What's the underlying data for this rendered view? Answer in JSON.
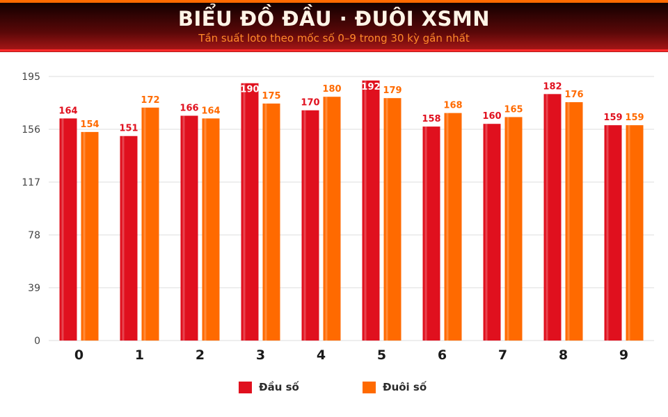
{
  "header": {
    "title": "BIỂU ĐỒ ĐẦU · ĐUÔI XSMN",
    "subtitle": "Tần suất loto theo mốc số 0–9 trong 30 kỳ gần nhất"
  },
  "colors": {
    "dau": "#e0101e",
    "duoi": "#ff6a00",
    "grid": "#dcdcdc",
    "axis_text": "#444444"
  },
  "chart_data": {
    "type": "bar",
    "title": "BIỂU ĐỒ ĐẦU · ĐUÔI XSMN",
    "subtitle": "Tần suất loto theo mốc số 0–9 trong 30 kỳ gần nhất",
    "categories": [
      "0",
      "1",
      "2",
      "3",
      "4",
      "5",
      "6",
      "7",
      "8",
      "9"
    ],
    "series": [
      {
        "name": "Đầu số",
        "values": [
          164,
          151,
          166,
          190,
          170,
          192,
          158,
          160,
          182,
          159
        ]
      },
      {
        "name": "Đuôi số",
        "values": [
          154,
          172,
          164,
          175,
          180,
          179,
          168,
          165,
          176,
          159
        ]
      }
    ],
    "yticks": [
      0,
      39,
      78,
      117,
      156,
      195
    ],
    "ylim": [
      0,
      195
    ],
    "grid": true,
    "legend_position": "bottom",
    "data_labels": true
  }
}
